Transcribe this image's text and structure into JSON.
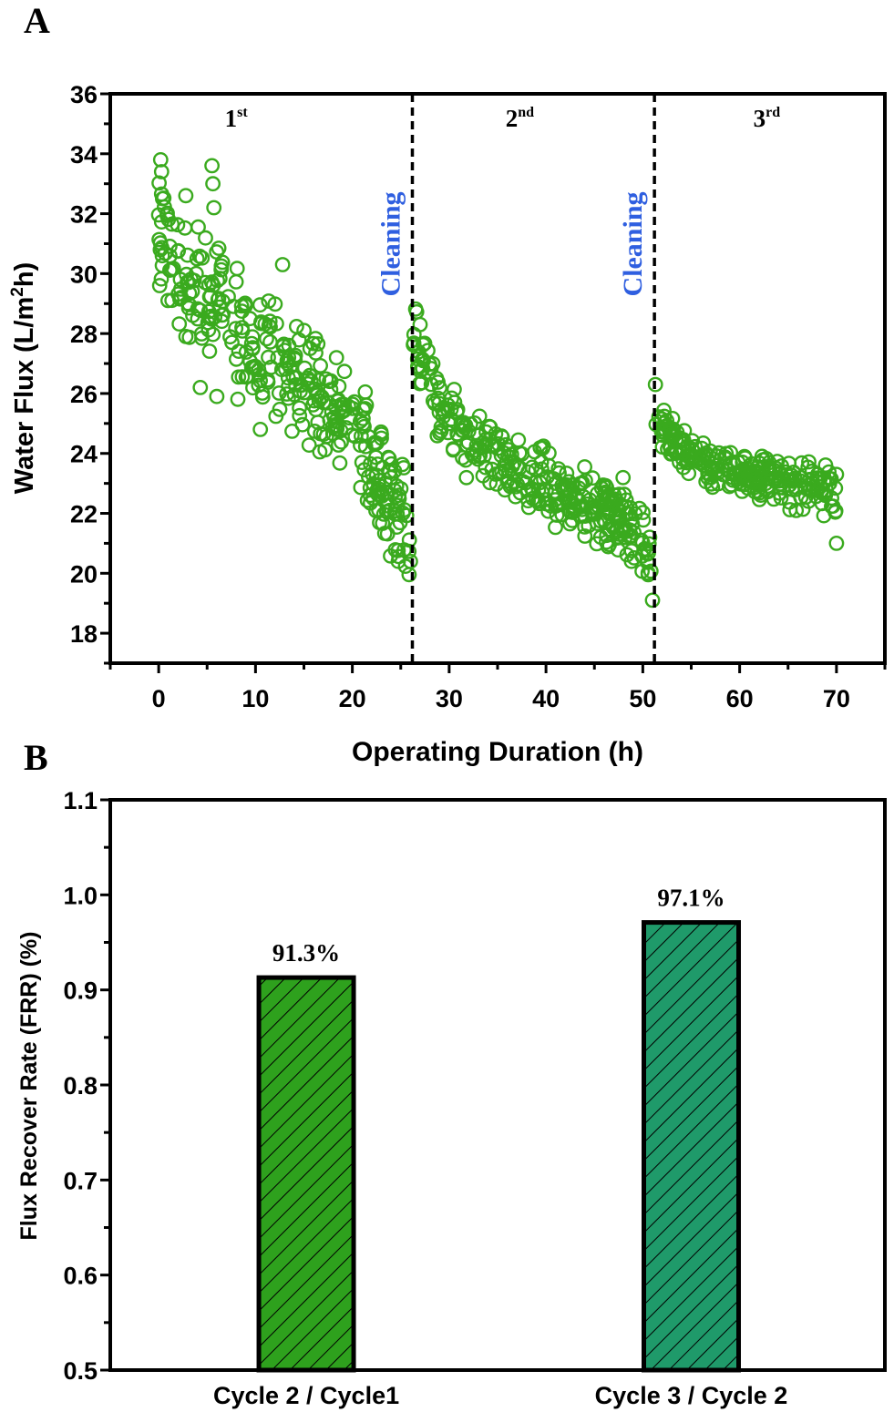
{
  "chart_data": [
    {
      "panel": "A",
      "type": "scatter",
      "xlabel": "Operating Duration (h)",
      "ylabel_main": "Water Flux (L/m",
      "ylabel_sup": "2",
      "ylabel_end": "h)",
      "xlim": [
        -5,
        75
      ],
      "ylim": [
        17,
        36
      ],
      "xticks": [
        0,
        10,
        20,
        30,
        40,
        50,
        60,
        70
      ],
      "yticks": [
        18,
        20,
        22,
        24,
        26,
        28,
        30,
        32,
        34,
        36
      ],
      "marker_color": "#3aaa1e",
      "cleaning_events": [
        {
          "x": 26.2,
          "label": "Cleaning"
        },
        {
          "x": 51.2,
          "label": "Cleaning"
        }
      ],
      "cycle_labels": [
        {
          "x": 8,
          "num": "1",
          "sup": "st"
        },
        {
          "x": 37.3,
          "num": "2",
          "sup": "nd"
        },
        {
          "x": 62.8,
          "num": "3",
          "sup": "rd"
        }
      ],
      "trend_segments": [
        {
          "x": [
            0,
            1,
            3,
            6,
            9,
            12,
            15,
            18,
            21,
            23,
            26
          ],
          "y": [
            31.5,
            30.8,
            29.8,
            29.0,
            27.6,
            27.2,
            26.3,
            25.5,
            24.5,
            22.8,
            21.8
          ]
        },
        {
          "x": [
            26.3,
            27,
            29,
            32,
            36,
            40,
            44,
            48,
            51
          ],
          "y": [
            28.0,
            27.0,
            25.5,
            24.4,
            23.7,
            22.9,
            22.2,
            21.9,
            20.5
          ]
        },
        {
          "x": [
            51.3,
            52,
            55,
            58,
            61,
            64,
            67,
            70
          ],
          "y": [
            25.2,
            24.8,
            23.9,
            23.6,
            23.3,
            23.0,
            22.9,
            22.7
          ]
        }
      ],
      "highlight_points": [
        {
          "x": 0.2,
          "y": 33.8
        },
        {
          "x": 0.3,
          "y": 33.4
        },
        {
          "x": 0.4,
          "y": 32.5
        },
        {
          "x": 5.5,
          "y": 33.6
        },
        {
          "x": 5.6,
          "y": 33.0
        },
        {
          "x": 5.7,
          "y": 32.2
        },
        {
          "x": 2.8,
          "y": 32.6
        },
        {
          "x": 0.1,
          "y": 29.6
        },
        {
          "x": 4.3,
          "y": 26.2
        },
        {
          "x": 6.0,
          "y": 25.9
        },
        {
          "x": 12.8,
          "y": 30.3
        },
        {
          "x": 10.5,
          "y": 24.8
        },
        {
          "x": 26.0,
          "y": 20.4
        },
        {
          "x": 27.0,
          "y": 28.3
        },
        {
          "x": 51.0,
          "y": 19.1
        },
        {
          "x": 51.3,
          "y": 26.3
        },
        {
          "x": 70.0,
          "y": 21.0
        },
        {
          "x": 70.0,
          "y": 23.3
        }
      ]
    },
    {
      "panel": "B",
      "type": "bar",
      "ylabel": "Flux Recover Rate (FRR) (%)",
      "ylim": [
        0.5,
        1.1
      ],
      "yticks": [
        "0.5",
        "0.6",
        "0.7",
        "0.8",
        "0.9",
        "1.0",
        "1.1"
      ],
      "categories": [
        "Cycle 2 / Cycle1",
        "Cycle 3 / Cycle 2"
      ],
      "values": [
        0.913,
        0.971
      ],
      "value_labels": [
        "91.3%",
        "97.1%"
      ],
      "colors": [
        "#2ea11d",
        "#1f9a6a"
      ],
      "hatch": "diagonal"
    }
  ]
}
